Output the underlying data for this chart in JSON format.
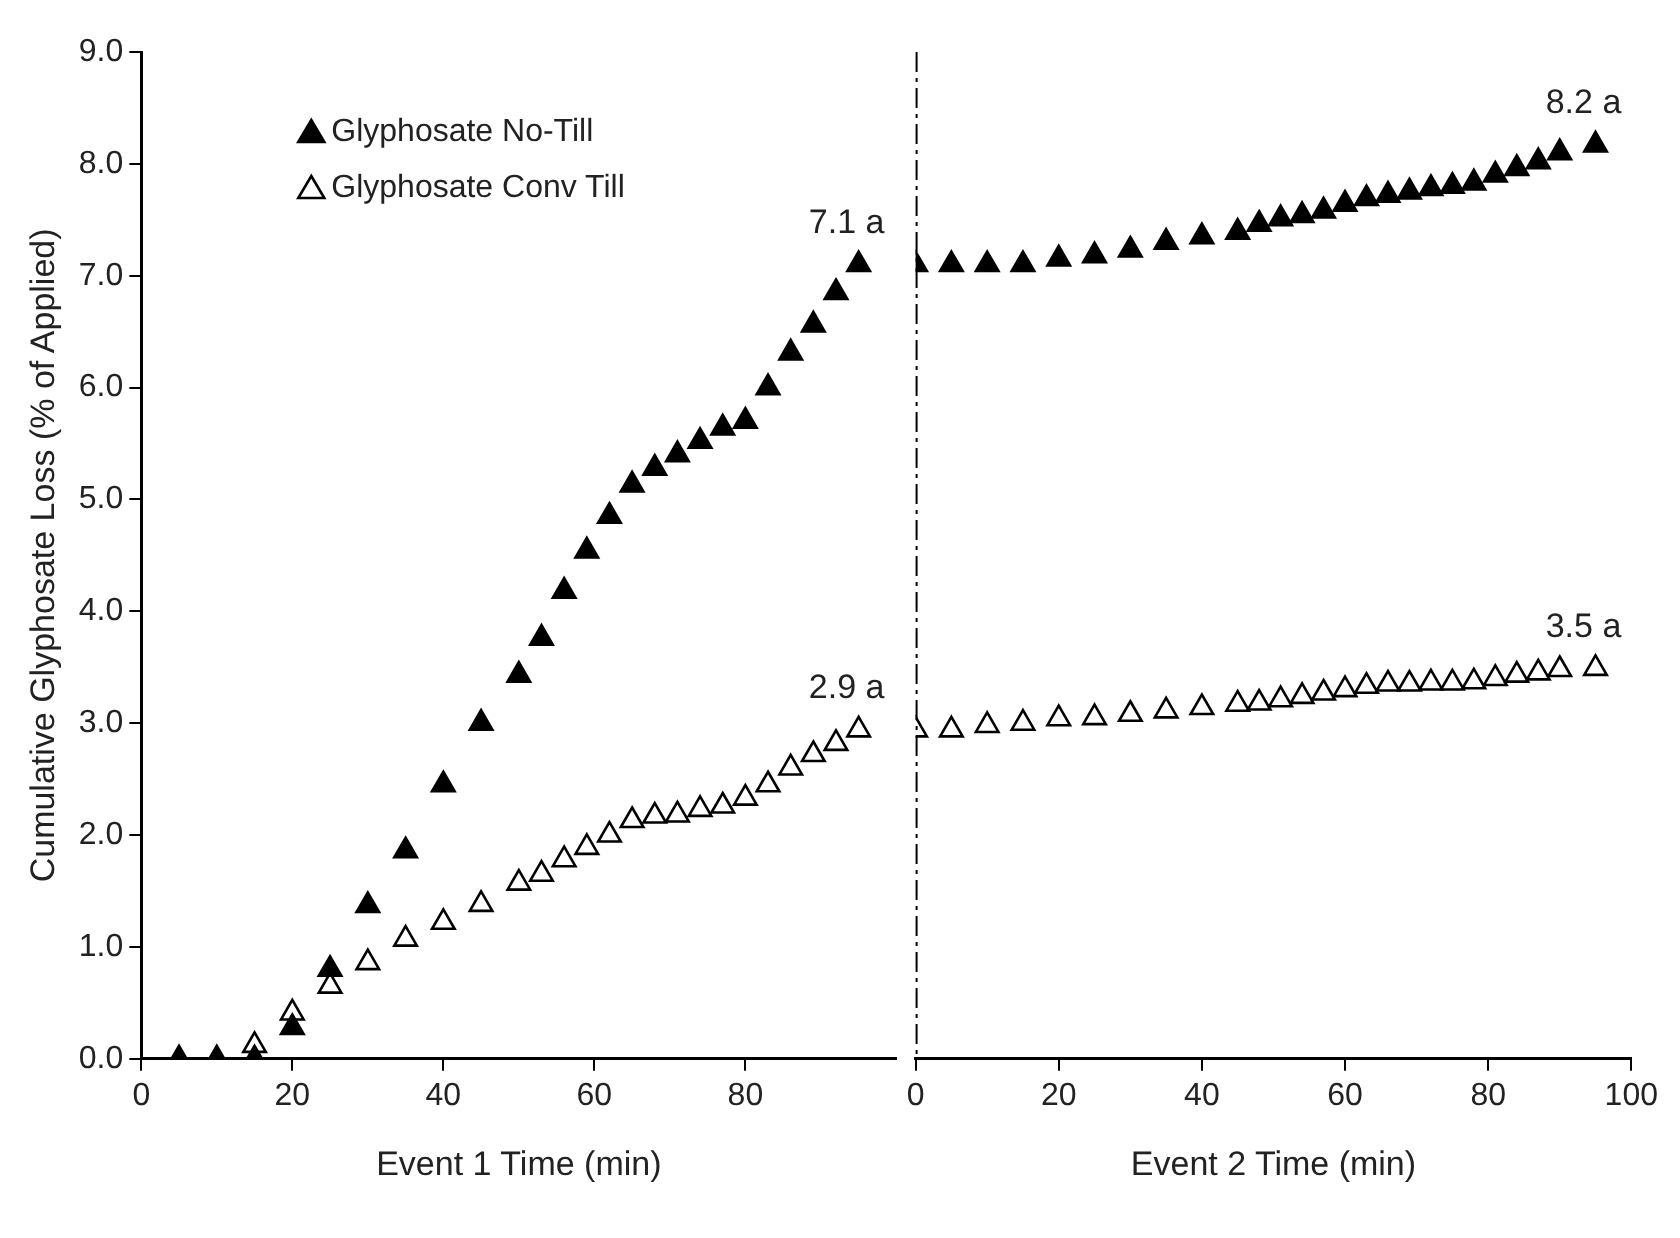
{
  "chart_data": [
    {
      "type": "scatter",
      "xlabel": "Event 1 Time (min)",
      "ylabel": "Cumulative Glyphosate Loss (% of Applied)",
      "xlim": [
        0,
        100
      ],
      "xticks": [
        0,
        20,
        40,
        60,
        80
      ],
      "ylim": [
        0,
        9
      ],
      "yticks": [
        {
          "value": 0,
          "label": "0.0"
        },
        {
          "value": 1,
          "label": "1.0"
        },
        {
          "value": 2,
          "label": "2.0"
        },
        {
          "value": 3,
          "label": "3.0"
        },
        {
          "value": 4,
          "label": "4.0"
        },
        {
          "value": 5,
          "label": "5.0"
        },
        {
          "value": 6,
          "label": "6.0"
        },
        {
          "value": 7,
          "label": "7.0"
        },
        {
          "value": 8,
          "label": "8.0"
        },
        {
          "value": 9,
          "label": "9.0"
        }
      ],
      "grid": false,
      "legend": "top left",
      "marker": "triangle",
      "series": [
        {
          "name": "Glyphosate No-Till",
          "color": "#000000",
          "x": [
            5,
            10,
            15,
            20,
            25,
            30,
            35,
            40,
            45,
            50,
            53,
            56,
            59,
            62,
            65,
            68,
            71,
            74,
            77,
            80,
            83,
            86,
            89,
            92,
            95
          ],
          "values": [
            0,
            0,
            0,
            0.28,
            0.8,
            1.37,
            1.86,
            2.45,
            3.0,
            3.43,
            3.76,
            4.18,
            4.54,
            4.85,
            5.13,
            5.28,
            5.4,
            5.52,
            5.64,
            5.7,
            6.0,
            6.31,
            6.56,
            6.85,
            7.1
          ],
          "value_labels": [
            null,
            null,
            null,
            null,
            null,
            null,
            null,
            null,
            null,
            null,
            null,
            null,
            null,
            null,
            null,
            null,
            null,
            null,
            null,
            null,
            null,
            null,
            null,
            null,
            "7.1 a"
          ]
        },
        {
          "name": "Glyphosate Conv Till",
          "color": "#ffffff",
          "x": [
            15,
            20,
            25,
            30,
            35,
            40,
            45,
            50,
            53,
            56,
            59,
            62,
            65,
            68,
            71,
            74,
            77,
            80,
            83,
            86,
            89,
            92,
            95
          ],
          "values": [
            0.12,
            0.41,
            0.65,
            0.86,
            1.07,
            1.22,
            1.38,
            1.57,
            1.65,
            1.78,
            1.89,
            2.0,
            2.13,
            2.17,
            2.18,
            2.23,
            2.26,
            2.33,
            2.45,
            2.6,
            2.72,
            2.82,
            2.94
          ],
          "value_labels": [
            null,
            null,
            null,
            null,
            null,
            null,
            null,
            null,
            null,
            null,
            null,
            null,
            null,
            null,
            null,
            null,
            null,
            null,
            null,
            null,
            null,
            null,
            "2.9 a"
          ]
        }
      ]
    },
    {
      "type": "scatter",
      "xlabel": "Event 2 Time (min)",
      "xlim": [
        0,
        100
      ],
      "xticks": [
        0,
        20,
        40,
        60,
        80,
        100
      ],
      "ylim": [
        0,
        9
      ],
      "tick_labels": "x",
      "grid": false,
      "marker": "triangle",
      "series": [
        {
          "color": "#000000",
          "x": [
            0,
            5,
            10,
            15,
            20,
            25,
            30,
            35,
            40,
            45,
            48,
            51,
            54,
            57,
            60,
            63,
            66,
            69,
            72,
            75,
            78,
            81,
            84,
            87,
            90,
            95
          ],
          "values": [
            7.1,
            7.1,
            7.1,
            7.1,
            7.15,
            7.18,
            7.23,
            7.3,
            7.35,
            7.39,
            7.46,
            7.51,
            7.54,
            7.58,
            7.64,
            7.69,
            7.72,
            7.75,
            7.78,
            7.8,
            7.83,
            7.9,
            7.96,
            8.02,
            8.1,
            8.17
          ],
          "value_labels": [
            null,
            null,
            null,
            null,
            null,
            null,
            null,
            null,
            null,
            null,
            null,
            null,
            null,
            null,
            null,
            null,
            null,
            null,
            null,
            null,
            null,
            null,
            null,
            null,
            null,
            "8.2 a"
          ]
        },
        {
          "color": "#ffffff",
          "x": [
            0,
            5,
            10,
            15,
            20,
            25,
            30,
            35,
            40,
            45,
            48,
            51,
            54,
            57,
            60,
            63,
            66,
            69,
            72,
            75,
            78,
            81,
            84,
            87,
            90,
            95
          ],
          "values": [
            2.94,
            2.94,
            2.98,
            3.0,
            3.04,
            3.05,
            3.08,
            3.11,
            3.14,
            3.17,
            3.18,
            3.21,
            3.24,
            3.27,
            3.3,
            3.33,
            3.35,
            3.35,
            3.36,
            3.36,
            3.37,
            3.4,
            3.43,
            3.45,
            3.48,
            3.49
          ],
          "value_labels": [
            null,
            null,
            null,
            null,
            null,
            null,
            null,
            null,
            null,
            null,
            null,
            null,
            null,
            null,
            null,
            null,
            null,
            null,
            null,
            null,
            null,
            null,
            null,
            null,
            null,
            "3.5 a"
          ]
        }
      ],
      "ref_lines": [
        {
          "axis": "x",
          "value": 0,
          "color": "#000000",
          "line_style": "dashed"
        }
      ]
    }
  ]
}
